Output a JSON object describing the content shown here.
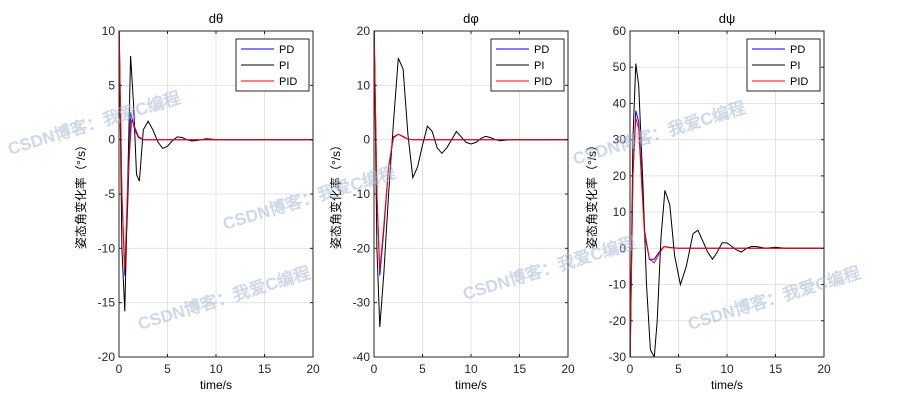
{
  "chart_data": [
    {
      "type": "line",
      "title": "dθ",
      "xlabel": "time/s",
      "ylabel": "姿态角变化率（°/s）",
      "xlim": [
        0,
        20
      ],
      "ylim": [
        -20,
        10
      ],
      "xticks": [
        0,
        5,
        10,
        15,
        20
      ],
      "yticks": [
        -20,
        -15,
        -10,
        -5,
        0,
        5,
        10
      ],
      "grid": true,
      "legend_position": "top-right",
      "series": [
        {
          "name": "PD",
          "color": "#0000ff",
          "x": [
            0,
            0.02,
            0.3,
            0.6,
            0.9,
            1.2,
            1.6,
            2.0,
            2.5,
            3.0,
            4.0,
            20
          ],
          "y": [
            0,
            10,
            -5,
            -12.5,
            -6,
            2.5,
            1.0,
            0.2,
            0,
            0,
            0,
            0
          ]
        },
        {
          "name": "PI",
          "color": "#000000",
          "x": [
            0,
            0.02,
            0.3,
            0.6,
            0.9,
            1.2,
            1.5,
            1.8,
            2.1,
            2.5,
            3.0,
            3.5,
            4.0,
            4.5,
            5.0,
            5.5,
            6.0,
            6.5,
            7.0,
            7.5,
            8.0,
            8.5,
            9.0,
            9.5,
            10.0,
            11.0,
            20
          ],
          "y": [
            0,
            10,
            -10,
            -15.8,
            -4,
            7.7,
            3.2,
            -3.2,
            -3.8,
            0.9,
            1.7,
            0.9,
            -0.2,
            -0.8,
            -0.6,
            -0.1,
            0.25,
            0.2,
            0,
            -0.12,
            -0.08,
            0,
            0.08,
            0.05,
            0,
            0,
            0
          ]
        },
        {
          "name": "PID",
          "color": "#ff0000",
          "x": [
            0,
            0.02,
            0.3,
            0.6,
            0.9,
            1.3,
            1.7,
            2.0,
            2.5,
            3.0,
            4.0,
            20
          ],
          "y": [
            0,
            10,
            -5,
            -12,
            -4,
            1.8,
            1.0,
            0.3,
            0,
            0,
            0,
            0
          ]
        }
      ]
    },
    {
      "type": "line",
      "title": "dφ",
      "xlabel": "time/s",
      "ylabel": "姿态角变化率（°/s）",
      "xlim": [
        0,
        20
      ],
      "ylim": [
        -40,
        20
      ],
      "xticks": [
        0,
        5,
        10,
        15,
        20
      ],
      "yticks": [
        -40,
        -30,
        -20,
        -10,
        0,
        10,
        20
      ],
      "grid": true,
      "legend_position": "top-right",
      "series": [
        {
          "name": "PD",
          "color": "#0000ff",
          "x": [
            0,
            0.02,
            0.3,
            0.6,
            1.0,
            1.5,
            2.0,
            2.5,
            3.0,
            3.5,
            4.0,
            20
          ],
          "y": [
            0,
            20,
            -10,
            -25,
            -17,
            -5,
            0.5,
            1.0,
            0.6,
            0.1,
            0,
            0
          ]
        },
        {
          "name": "PI",
          "color": "#000000",
          "x": [
            0,
            0.02,
            0.3,
            0.6,
            1.0,
            1.5,
            2.0,
            2.5,
            3.0,
            3.5,
            4.0,
            4.5,
            5.0,
            5.5,
            6.0,
            6.5,
            7.0,
            7.5,
            8.0,
            8.5,
            9.0,
            9.5,
            10.0,
            10.5,
            11.0,
            11.5,
            12.0,
            12.5,
            13.0,
            14.0,
            20
          ],
          "y": [
            0,
            20,
            -20,
            -34.5,
            -25,
            -10,
            3,
            15,
            13,
            1,
            -7,
            -5,
            -1,
            2.5,
            1.5,
            -1.5,
            -2.5,
            -1.5,
            0,
            1.5,
            0.5,
            -0.5,
            -0.8,
            -0.5,
            0.2,
            0.6,
            0.4,
            0,
            -0.2,
            0,
            0
          ]
        },
        {
          "name": "PID",
          "color": "#ff0000",
          "x": [
            0,
            0.02,
            0.3,
            0.6,
            1.0,
            1.5,
            2.0,
            2.5,
            3.0,
            3.5,
            4.0,
            20
          ],
          "y": [
            0,
            20,
            -10,
            -24,
            -16,
            -5,
            0.3,
            1.0,
            0.5,
            0.1,
            0,
            0
          ]
        }
      ]
    },
    {
      "type": "line",
      "title": "dψ",
      "xlabel": "time/s",
      "ylabel": "姿态角变化率（°/s）",
      "xlim": [
        0,
        20
      ],
      "ylim": [
        -30,
        60
      ],
      "xticks": [
        0,
        5,
        10,
        15,
        20
      ],
      "yticks": [
        -30,
        -20,
        -10,
        0,
        10,
        20,
        30,
        40,
        50,
        60
      ],
      "grid": true,
      "legend_position": "top-right",
      "series": [
        {
          "name": "PD",
          "color": "#0000ff",
          "x": [
            0,
            0.02,
            0.3,
            0.6,
            0.9,
            1.2,
            1.5,
            2.0,
            2.5,
            3.0,
            3.5,
            4.0,
            5.0,
            20
          ],
          "y": [
            0,
            -30,
            20,
            38,
            35,
            20,
            5,
            -3,
            -3,
            -1,
            0.5,
            0.3,
            0,
            0
          ]
        },
        {
          "name": "PI",
          "color": "#000000",
          "x": [
            0,
            0.02,
            0.3,
            0.6,
            0.9,
            1.3,
            1.7,
            2.1,
            2.5,
            2.8,
            3.2,
            3.6,
            4.1,
            4.6,
            5.2,
            5.8,
            6.5,
            7.0,
            7.5,
            8.0,
            8.5,
            9.0,
            9.5,
            10.0,
            10.5,
            11.0,
            11.5,
            12.0,
            12.5,
            13.0,
            14.0,
            15.0,
            16.0,
            20
          ],
          "y": [
            0,
            -30,
            30,
            51,
            45,
            20,
            -10,
            -28,
            -30,
            -20,
            3,
            16,
            12,
            -2,
            -10,
            -5,
            4,
            5,
            2,
            -1,
            -3,
            -1,
            1.5,
            1.5,
            0.5,
            -0.5,
            -1,
            0,
            0.5,
            0.5,
            0,
            0.3,
            0,
            0
          ]
        },
        {
          "name": "PID",
          "color": "#ff0000",
          "x": [
            0,
            0.02,
            0.3,
            0.6,
            0.9,
            1.2,
            1.5,
            2.0,
            2.5,
            3.0,
            3.5,
            4.0,
            5.0,
            20
          ],
          "y": [
            0,
            -30,
            20,
            36,
            33,
            18,
            4,
            -3,
            -4,
            -1.5,
            0.5,
            0.2,
            0,
            0
          ]
        }
      ]
    }
  ],
  "watermark": "CSDN博客：我爱C编程"
}
